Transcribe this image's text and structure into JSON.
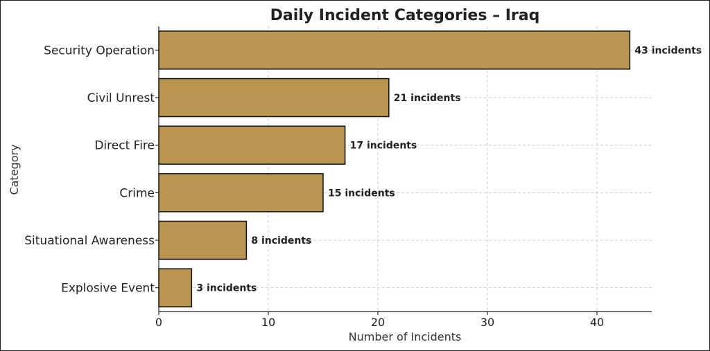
{
  "chart_data": {
    "type": "bar",
    "orientation": "horizontal",
    "title": "Daily Incident Categories – Iraq",
    "xlabel": "Number of Incidents",
    "ylabel": "Category",
    "categories": [
      "Security Operation",
      "Civil Unrest",
      "Direct Fire",
      "Crime",
      "Situational Awareness",
      "Explosive Event"
    ],
    "values": [
      43,
      21,
      17,
      15,
      8,
      3
    ],
    "data_labels": [
      "43 incidents",
      "21 incidents",
      "17 incidents",
      "15 incidents",
      "8 incidents",
      "3 incidents"
    ],
    "xlim": [
      0,
      45
    ],
    "xticks": [
      0,
      10,
      20,
      30,
      40
    ],
    "grid": true,
    "bar_color": "#b8944f",
    "edge_color": "#111111"
  }
}
